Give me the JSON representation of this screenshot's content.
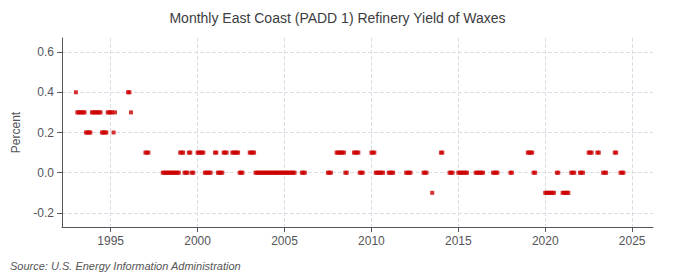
{
  "chart_data": {
    "type": "scatter",
    "title": "Monthly East Coast (PADD 1) Refinery Yield of Waxes",
    "ylabel": "Percent",
    "annotations": [
      "Source: U.S. Energy Information Administration"
    ],
    "color": "#cc0000",
    "marker": "square",
    "grid": true,
    "xlim": [
      1992.2,
      2026.2
    ],
    "xticks": [
      1995,
      2000,
      2005,
      2010,
      2015,
      2020,
      2025
    ],
    "ylim": [
      -0.27,
      0.67
    ],
    "yticks": [
      -0.2,
      {
        "value": 0.0,
        "label": "0.0"
      },
      0.2,
      0.4,
      0.6
    ],
    "x": [
      1993.0,
      1993.08,
      1993.17,
      1993.25,
      1993.33,
      1993.42,
      1993.5,
      1993.58,
      1993.67,
      1993.75,
      1993.83,
      1993.92,
      1994.0,
      1994.08,
      1994.17,
      1994.25,
      1994.33,
      1994.42,
      1994.5,
      1994.58,
      1994.67,
      1994.75,
      1994.83,
      1994.92,
      1995.0,
      1995.08,
      1995.17,
      1995.25,
      1996.0,
      1996.08,
      1996.17,
      1997.0,
      1997.08,
      1997.17,
      1998.0,
      1998.08,
      1998.17,
      1998.25,
      1998.33,
      1998.42,
      1998.5,
      1998.58,
      1998.67,
      1998.75,
      1998.83,
      1998.92,
      1999.0,
      1999.08,
      1999.17,
      1999.25,
      1999.33,
      1999.42,
      1999.5,
      1999.58,
      1999.67,
      1999.75,
      2000.0,
      2000.08,
      2000.17,
      2000.25,
      2000.33,
      2000.42,
      2000.5,
      2000.58,
      2000.67,
      2000.75,
      2001.0,
      2001.08,
      2001.17,
      2001.25,
      2001.33,
      2001.42,
      2001.5,
      2001.58,
      2001.67,
      2002.0,
      2002.08,
      2002.17,
      2002.25,
      2002.33,
      2002.42,
      2002.5,
      2002.58,
      2003.0,
      2003.08,
      2003.17,
      2003.25,
      2003.33,
      2003.42,
      2003.5,
      2003.58,
      2003.67,
      2003.75,
      2003.83,
      2003.92,
      2004.0,
      2004.08,
      2004.17,
      2004.25,
      2004.33,
      2004.42,
      2004.5,
      2004.58,
      2004.67,
      2004.75,
      2004.83,
      2004.92,
      2005.0,
      2005.08,
      2005.17,
      2005.25,
      2005.33,
      2005.42,
      2005.5,
      2005.58,
      2006.0,
      2006.08,
      2006.17,
      2007.5,
      2007.58,
      2007.67,
      2008.0,
      2008.08,
      2008.17,
      2008.25,
      2008.33,
      2008.42,
      2008.5,
      2008.58,
      2009.0,
      2009.08,
      2009.17,
      2009.25,
      2009.33,
      2009.42,
      2009.5,
      2010.0,
      2010.08,
      2010.17,
      2010.25,
      2010.33,
      2010.42,
      2010.5,
      2010.58,
      2010.67,
      2011.0,
      2011.08,
      2011.17,
      2011.25,
      2012.0,
      2012.08,
      2012.17,
      2012.25,
      2013.0,
      2013.08,
      2013.17,
      2013.5,
      2014.0,
      2014.08,
      2014.5,
      2014.58,
      2014.67,
      2015.0,
      2015.08,
      2015.17,
      2015.25,
      2015.33,
      2015.42,
      2015.5,
      2016.0,
      2016.08,
      2016.17,
      2016.25,
      2016.33,
      2016.42,
      2017.0,
      2017.08,
      2017.17,
      2017.25,
      2018.0,
      2018.08,
      2019.0,
      2019.08,
      2019.17,
      2019.25,
      2019.33,
      2019.42,
      2020.0,
      2020.08,
      2020.17,
      2020.25,
      2020.33,
      2020.42,
      2020.5,
      2020.67,
      2020.75,
      2021.0,
      2021.08,
      2021.17,
      2021.25,
      2021.33,
      2021.5,
      2021.58,
      2021.67,
      2022.0,
      2022.08,
      2022.17,
      2022.5,
      2022.58,
      2022.67,
      2023.0,
      2023.08,
      2023.33,
      2023.42,
      2023.5,
      2024.0,
      2024.08,
      2024.33,
      2024.42,
      2024.5
    ],
    "values": [
      0.4,
      0.3,
      0.3,
      0.3,
      0.3,
      0.3,
      0.3,
      0.2,
      0.2,
      0.2,
      0.2,
      0.3,
      0.3,
      0.3,
      0.3,
      0.3,
      0.3,
      0.3,
      0.2,
      0.2,
      0.2,
      0.2,
      0.3,
      0.3,
      0.3,
      0.3,
      0.2,
      0.3,
      0.4,
      0.4,
      0.3,
      0.1,
      0.1,
      0.1,
      0.0,
      0.0,
      0.0,
      0.0,
      0.0,
      0.0,
      0.0,
      0.0,
      0.0,
      0.0,
      0.0,
      0.0,
      0.1,
      0.1,
      0.1,
      0.0,
      0.0,
      0.0,
      0.1,
      0.1,
      0.0,
      0.0,
      0.1,
      0.1,
      0.1,
      0.1,
      0.1,
      0.0,
      0.0,
      0.0,
      0.0,
      0.0,
      0.1,
      0.1,
      0.0,
      0.0,
      0.0,
      0.0,
      0.1,
      0.1,
      0.1,
      0.1,
      0.1,
      0.1,
      0.1,
      0.1,
      0.0,
      0.0,
      0.0,
      0.1,
      0.1,
      0.1,
      0.1,
      0.0,
      0.0,
      0.0,
      0.0,
      0.0,
      0.0,
      0.0,
      0.0,
      0.0,
      0.0,
      0.0,
      0.0,
      0.0,
      0.0,
      0.0,
      0.0,
      0.0,
      0.0,
      0.0,
      0.0,
      0.0,
      0.0,
      0.0,
      0.0,
      0.0,
      0.0,
      0.0,
      0.0,
      0.0,
      0.0,
      0.0,
      0.0,
      0.0,
      0.0,
      0.1,
      0.1,
      0.1,
      0.1,
      0.1,
      0.1,
      0.0,
      0.0,
      0.1,
      0.1,
      0.1,
      0.1,
      0.0,
      0.0,
      0.0,
      0.1,
      0.1,
      0.1,
      0.0,
      0.0,
      0.0,
      0.0,
      0.0,
      0.0,
      0.0,
      0.0,
      0.0,
      0.0,
      0.0,
      0.0,
      0.0,
      0.0,
      0.0,
      0.0,
      0.0,
      -0.1,
      0.1,
      0.1,
      0.0,
      0.0,
      0.0,
      0.0,
      0.0,
      0.0,
      0.0,
      0.0,
      0.0,
      0.0,
      0.0,
      0.0,
      0.0,
      0.0,
      0.0,
      0.0,
      0.0,
      0.0,
      0.0,
      0.0,
      0.0,
      0.0,
      0.1,
      0.1,
      0.1,
      0.1,
      0.0,
      0.0,
      -0.1,
      -0.1,
      -0.1,
      -0.1,
      -0.1,
      -0.1,
      -0.1,
      0.0,
      0.0,
      -0.1,
      -0.1,
      -0.1,
      -0.1,
      -0.1,
      0.0,
      0.0,
      0.0,
      0.0,
      0.0,
      0.0,
      0.1,
      0.1,
      0.1,
      0.1,
      0.1,
      0.0,
      0.0,
      0.0,
      0.1,
      0.1,
      0.0,
      0.0,
      0.0
    ]
  }
}
